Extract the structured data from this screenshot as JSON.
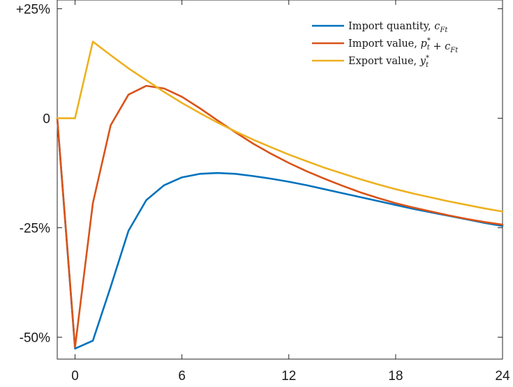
{
  "chart_data": {
    "type": "line",
    "title": "",
    "xlabel": "",
    "ylabel": "",
    "xlim": [
      -1,
      24
    ],
    "ylim": [
      -55,
      27
    ],
    "xticks": [
      0,
      6,
      12,
      18,
      24
    ],
    "xtick_labels": [
      "0",
      "6",
      "12",
      "18",
      "24"
    ],
    "yticks": [
      25,
      0,
      -25,
      -50
    ],
    "ytick_labels": [
      "+25%",
      "0",
      "-25%",
      "-50%"
    ],
    "grid": false,
    "legend_position": "top-right",
    "series": [
      {
        "name": "Import quantity, c_Ft",
        "label_prefix": "Import quantity,",
        "math": "c",
        "math_sub": "Ft",
        "color": "#0072BD",
        "x": [
          -1,
          0,
          1,
          2,
          3,
          4,
          5,
          6,
          7,
          8,
          9,
          10,
          11,
          12,
          13,
          14,
          15,
          16,
          17,
          18,
          19,
          20,
          21,
          22,
          23,
          24
        ],
        "y": [
          0,
          -52.6,
          -50.8,
          -38.5,
          -25.7,
          -18.7,
          -15.3,
          -13.5,
          -12.7,
          -12.5,
          -12.7,
          -13.2,
          -13.8,
          -14.5,
          -15.3,
          -16.2,
          -17.1,
          -18.0,
          -18.9,
          -19.8,
          -20.7,
          -21.5,
          -22.3,
          -23.1,
          -23.9,
          -24.6
        ]
      },
      {
        "name": "Import value, p*_t + c_Ft",
        "label_prefix": "Import value,",
        "math": "p",
        "math_sup": "*",
        "math_sub": "t",
        "math_rest": " + c",
        "math_sub2": "Ft",
        "color": "#D95319",
        "x": [
          -1,
          0,
          1,
          2,
          3,
          4,
          5,
          6,
          7,
          8,
          9,
          10,
          11,
          12,
          13,
          14,
          15,
          16,
          17,
          18,
          19,
          20,
          21,
          22,
          23,
          24
        ],
        "y": [
          0,
          -52.3,
          -19.4,
          -1.6,
          5.4,
          7.4,
          6.8,
          4.9,
          2.3,
          -0.5,
          -3.2,
          -5.8,
          -8.1,
          -10.2,
          -12.1,
          -13.8,
          -15.4,
          -16.9,
          -18.2,
          -19.4,
          -20.4,
          -21.3,
          -22.2,
          -23.0,
          -23.7,
          -24.3
        ]
      },
      {
        "name": "Export value, y*_t",
        "label_prefix": "Export value,",
        "math": "y",
        "math_sup": "*",
        "math_sub": "t",
        "color": "#EDB120",
        "x": [
          -1,
          0,
          1,
          2,
          3,
          4,
          5,
          6,
          7,
          8,
          9,
          10,
          11,
          12,
          13,
          14,
          15,
          16,
          17,
          18,
          19,
          20,
          21,
          22,
          23,
          24
        ],
        "y": [
          0,
          0,
          17.5,
          14.4,
          11.4,
          8.7,
          6.0,
          3.5,
          1.2,
          -1.0,
          -3.0,
          -4.9,
          -6.6,
          -8.3,
          -9.8,
          -11.3,
          -12.6,
          -13.9,
          -15.1,
          -16.2,
          -17.2,
          -18.1,
          -19.0,
          -19.8,
          -20.6,
          -21.3
        ]
      }
    ]
  }
}
